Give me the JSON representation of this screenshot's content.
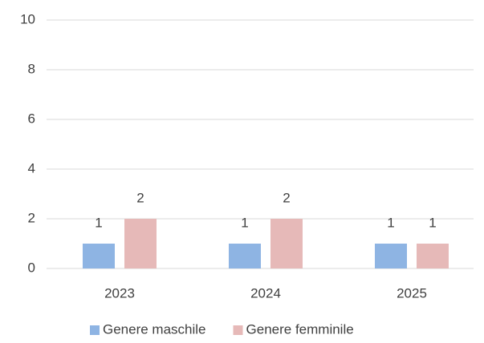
{
  "chart_data": {
    "type": "bar",
    "categories": [
      "2023",
      "2024",
      "2025"
    ],
    "series": [
      {
        "name": "Genere maschile",
        "color": "#8eb4e3",
        "values": [
          1,
          1,
          1
        ]
      },
      {
        "name": "Genere femminile",
        "color": "#e6b9b8",
        "values": [
          2,
          2,
          1
        ]
      }
    ],
    "ylim": [
      0,
      10
    ],
    "yticks": [
      0,
      2,
      4,
      6,
      8,
      10
    ],
    "grid": true,
    "data_labels": true,
    "legend": "bottom"
  }
}
